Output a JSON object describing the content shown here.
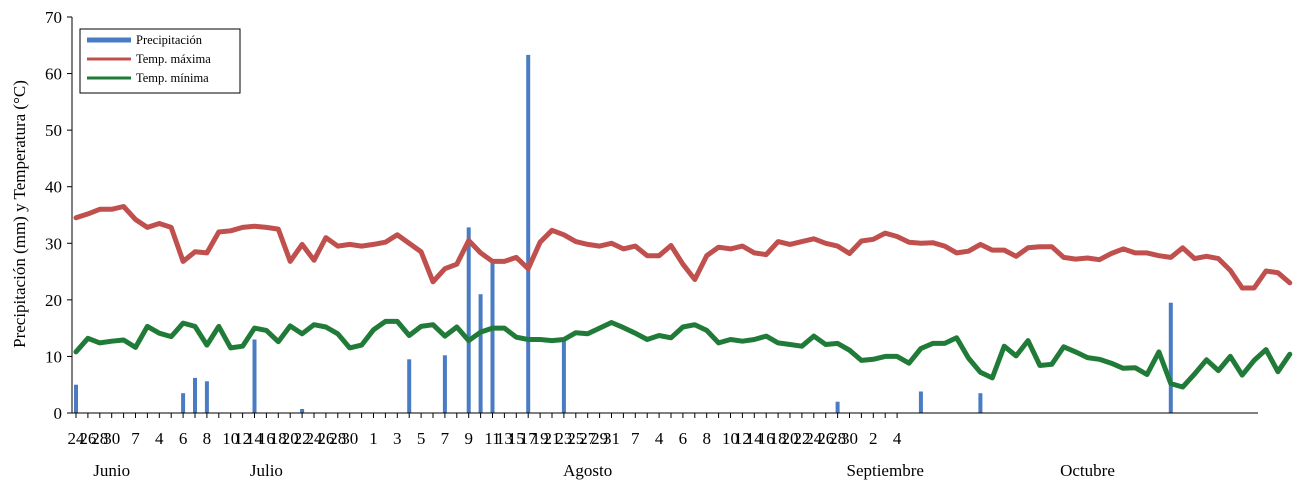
{
  "chart_data": {
    "type": "bar+line",
    "ylabel": "Precipitación (mm) y Temperatura (°C)",
    "xlabel": "",
    "ylim": [
      0,
      70
    ],
    "yticks": [
      0,
      10,
      20,
      30,
      40,
      50,
      60,
      70
    ],
    "grid": false,
    "legend_position": "top-left",
    "x_tick_labels": [
      "24",
      "26",
      "28",
      "30",
      "",
      "7",
      "",
      "4",
      "",
      "6",
      "",
      "8",
      "",
      "10",
      "12",
      "14",
      "16",
      "18",
      "20",
      "22",
      "24",
      "26",
      "28",
      "30",
      "",
      "1",
      "",
      "3",
      "",
      "5",
      "",
      "7",
      "",
      "9",
      "",
      "11",
      "13",
      "15",
      "17",
      "19",
      "21",
      "23",
      "25",
      "27",
      "29",
      "31",
      "",
      "7",
      "",
      "4",
      "",
      "6",
      "",
      "8",
      "",
      "10",
      "12",
      "14",
      "16",
      "18",
      "20",
      "22",
      "24",
      "26",
      "28",
      "30",
      "",
      "2",
      "",
      "4"
    ],
    "month_labels": [
      {
        "label": "Junio",
        "index": 3
      },
      {
        "label": "Julio",
        "index": 16
      },
      {
        "label": "Agosto",
        "index": 43
      },
      {
        "label": "Septiembre",
        "index": 68
      },
      {
        "label": "Octubre",
        "index": 85
      }
    ],
    "series": [
      {
        "name": "Precipitación",
        "kind": "bar",
        "color": "#4a7cc4",
        "points": [
          [
            0,
            5
          ],
          [
            9,
            3.5
          ],
          [
            10,
            6.2
          ],
          [
            11,
            5.6
          ],
          [
            15,
            13
          ],
          [
            19,
            0.7
          ],
          [
            28,
            9.5
          ],
          [
            31,
            10.2
          ],
          [
            33,
            32.8
          ],
          [
            34,
            21
          ],
          [
            35,
            27
          ],
          [
            38,
            63.3
          ],
          [
            41,
            13
          ],
          [
            64,
            2
          ],
          [
            71,
            3.8
          ],
          [
            76,
            3.5
          ],
          [
            92,
            19.5
          ]
        ]
      },
      {
        "name": "Temp. máxima",
        "kind": "line",
        "color": "#c0504d",
        "values": [
          34.5,
          35.2,
          36,
          36,
          36.5,
          34.2,
          32.8,
          33.5,
          32.8,
          26.8,
          28.5,
          28.3,
          32,
          32.2,
          32.8,
          33,
          32.8,
          32.5,
          26.8,
          29.8,
          27,
          31,
          29.5,
          29.8,
          29.5,
          29.8,
          30.2,
          31.5,
          30,
          28.5,
          23.2,
          25.5,
          26.3,
          30.5,
          28.3,
          26.8,
          26.8,
          27.5,
          25.5,
          30.2,
          32.3,
          31.5,
          30.3,
          29.8,
          29.5,
          30,
          29,
          29.5,
          27.8,
          27.8,
          29.6,
          26.3,
          23.6,
          27.8,
          29.3,
          29,
          29.5,
          28.3,
          28,
          30.3,
          29.8,
          30.3,
          30.8,
          30,
          29.5,
          28.2,
          30.4,
          30.7,
          31.8,
          31.2,
          30.2,
          30,
          30.1,
          29.5,
          28.3,
          28.6,
          29.8,
          28.8,
          28.8,
          27.7,
          29.2,
          29.4,
          29.4,
          27.5,
          27.2,
          27.4,
          27.1,
          28.2,
          29,
          28.3,
          28.3,
          27.8,
          27.5,
          29.2,
          27.3,
          27.7,
          27.3,
          25.2,
          22.1,
          22.1,
          25.1,
          24.8,
          23
        ]
      },
      {
        "name": "Temp. mínima",
        "kind": "line",
        "color": "#217b38",
        "values": [
          10.8,
          13.2,
          12.4,
          12.7,
          12.9,
          11.6,
          15.3,
          14.1,
          13.5,
          15.9,
          15.3,
          12,
          15.3,
          11.5,
          11.8,
          15,
          14.6,
          12.6,
          15.4,
          14,
          15.6,
          15.2,
          14,
          11.5,
          12,
          14.7,
          16.2,
          16.2,
          13.7,
          15.3,
          15.6,
          13.6,
          15.2,
          12.8,
          14.3,
          15,
          15,
          13.4,
          13,
          13,
          12.8,
          13,
          14.2,
          14,
          15,
          16,
          15.1,
          14.1,
          13,
          13.7,
          13.3,
          15.2,
          15.6,
          14.6,
          12.4,
          13,
          12.7,
          13,
          13.6,
          12.4,
          12.1,
          11.8,
          13.6,
          12.1,
          12.3,
          11.1,
          9.3,
          9.5,
          10,
          10,
          8.8,
          11.4,
          12.3,
          12.3,
          13.3,
          9.7,
          7.2,
          6.2,
          11.8,
          10.1,
          12.8,
          8.4,
          8.6,
          11.7,
          10.8,
          9.8,
          9.5,
          8.8,
          7.9,
          8,
          6.8,
          10.8,
          5.2,
          4.6,
          6.9,
          9.4,
          7.5,
          10,
          6.7,
          9.3,
          11.2,
          7.3,
          10.4
        ]
      }
    ]
  }
}
